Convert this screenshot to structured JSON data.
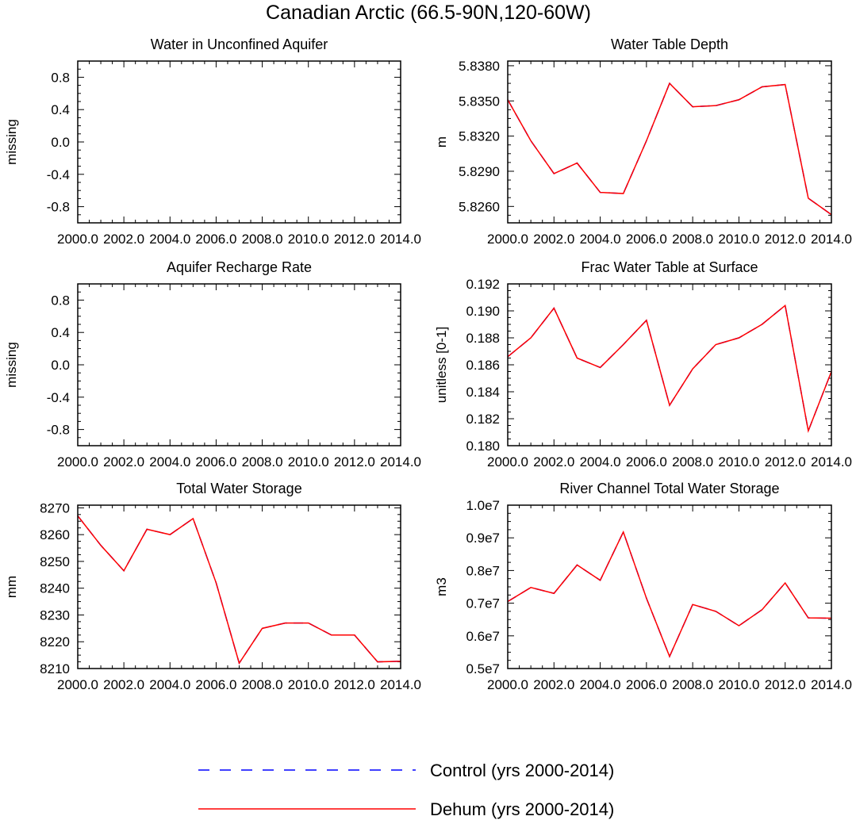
{
  "title": "Canadian Arctic (66.5-90N,120-60W)",
  "legend": [
    {
      "label": "Control (yrs 2000-2014)",
      "color": "#0000ff",
      "dash": "dashed"
    },
    {
      "label": "Dehum (yrs 2000-2014)",
      "color": "#ff0000",
      "dash": "solid"
    }
  ],
  "chart_data": [
    {
      "type": "line",
      "title": "Water in Unconfined Aquifer",
      "ylabel": "missing",
      "xlabel": "",
      "x": [
        2000,
        2001,
        2002,
        2003,
        2004,
        2005,
        2006,
        2007,
        2008,
        2009,
        2010,
        2011,
        2012,
        2013,
        2014
      ],
      "xlim": [
        2000,
        2014
      ],
      "ylim": [
        -1,
        1
      ],
      "xticks": [
        "2000.0",
        "2002.0",
        "2004.0",
        "2006.0",
        "2008.0",
        "2010.0",
        "2012.0",
        "2014.0"
      ],
      "yticks": [
        {
          "v": 0.8,
          "label": "0.8"
        },
        {
          "v": 0.4,
          "label": "0.4"
        },
        {
          "v": 0.0,
          "label": "0.0"
        },
        {
          "v": -0.4,
          "label": "-0.4"
        },
        {
          "v": -0.8,
          "label": "-0.8"
        }
      ],
      "series": []
    },
    {
      "type": "line",
      "title": "Water Table Depth",
      "ylabel": "m",
      "xlabel": "",
      "x": [
        2000,
        2001,
        2002,
        2003,
        2004,
        2005,
        2006,
        2007,
        2008,
        2009,
        2010,
        2011,
        2012,
        2013,
        2014
      ],
      "xlim": [
        2000,
        2014
      ],
      "ylim": [
        5.8246,
        5.8384
      ],
      "xticks": [
        "2000.0",
        "2002.0",
        "2004.0",
        "2006.0",
        "2008.0",
        "2010.0",
        "2012.0",
        "2014.0"
      ],
      "yticks": [
        {
          "v": 5.838,
          "label": "5.8380"
        },
        {
          "v": 5.835,
          "label": "5.8350"
        },
        {
          "v": 5.832,
          "label": "5.8320"
        },
        {
          "v": 5.829,
          "label": "5.8290"
        },
        {
          "v": 5.826,
          "label": "5.8260"
        }
      ],
      "series": [
        {
          "values": [
            5.8351,
            5.8316,
            5.8288,
            5.8297,
            5.8272,
            5.8271,
            5.8316,
            5.8365,
            5.8345,
            5.8346,
            5.8351,
            5.8362,
            5.8364,
            5.8267,
            5.8253
          ]
        },
        {
          "values": [
            5.8351,
            5.8316,
            5.8288,
            5.8297,
            5.8272,
            5.8271,
            5.8316,
            5.8365,
            5.8345,
            5.8346,
            5.8351,
            5.8362,
            5.8364,
            5.8267,
            5.8253
          ]
        }
      ]
    },
    {
      "type": "line",
      "title": "Aquifer Recharge Rate",
      "ylabel": "missing",
      "xlabel": "",
      "x": [
        2000,
        2001,
        2002,
        2003,
        2004,
        2005,
        2006,
        2007,
        2008,
        2009,
        2010,
        2011,
        2012,
        2013,
        2014
      ],
      "xlim": [
        2000,
        2014
      ],
      "ylim": [
        -1,
        1
      ],
      "xticks": [
        "2000.0",
        "2002.0",
        "2004.0",
        "2006.0",
        "2008.0",
        "2010.0",
        "2012.0",
        "2014.0"
      ],
      "yticks": [
        {
          "v": 0.8,
          "label": "0.8"
        },
        {
          "v": 0.4,
          "label": "0.4"
        },
        {
          "v": 0.0,
          "label": "0.0"
        },
        {
          "v": -0.4,
          "label": "-0.4"
        },
        {
          "v": -0.8,
          "label": "-0.8"
        }
      ],
      "series": []
    },
    {
      "type": "line",
      "title": "Frac Water Table at Surface",
      "ylabel": "unitless [0-1]",
      "xlabel": "",
      "x": [
        2000,
        2001,
        2002,
        2003,
        2004,
        2005,
        2006,
        2007,
        2008,
        2009,
        2010,
        2011,
        2012,
        2013,
        2014
      ],
      "xlim": [
        2000,
        2014
      ],
      "ylim": [
        0.18,
        0.192
      ],
      "xticks": [
        "2000.0",
        "2002.0",
        "2004.0",
        "2006.0",
        "2008.0",
        "2010.0",
        "2012.0",
        "2014.0"
      ],
      "yticks": [
        {
          "v": 0.192,
          "label": "0.192"
        },
        {
          "v": 0.19,
          "label": "0.190"
        },
        {
          "v": 0.188,
          "label": "0.188"
        },
        {
          "v": 0.186,
          "label": "0.186"
        },
        {
          "v": 0.184,
          "label": "0.184"
        },
        {
          "v": 0.182,
          "label": "0.182"
        },
        {
          "v": 0.18,
          "label": "0.180"
        }
      ],
      "series": [
        {
          "values": [
            0.1866,
            0.188,
            0.1902,
            0.1865,
            0.1858,
            0.1875,
            0.1893,
            0.183,
            0.1857,
            0.1875,
            0.188,
            0.189,
            0.1904,
            0.1811,
            0.1855
          ]
        },
        {
          "values": [
            0.1866,
            0.188,
            0.1902,
            0.1865,
            0.1858,
            0.1875,
            0.1893,
            0.183,
            0.1857,
            0.1875,
            0.188,
            0.189,
            0.1904,
            0.1811,
            0.1855
          ]
        }
      ]
    },
    {
      "type": "line",
      "title": "Total Water Storage",
      "ylabel": "mm",
      "xlabel": "",
      "x": [
        2000,
        2001,
        2002,
        2003,
        2004,
        2005,
        2006,
        2007,
        2008,
        2009,
        2010,
        2011,
        2012,
        2013,
        2014
      ],
      "xlim": [
        2000,
        2014
      ],
      "ylim": [
        8210,
        8271
      ],
      "xticks": [
        "2000.0",
        "2002.0",
        "2004.0",
        "2006.0",
        "2008.0",
        "2010.0",
        "2012.0",
        "2014.0"
      ],
      "yticks": [
        {
          "v": 8270,
          "label": "8270"
        },
        {
          "v": 8260,
          "label": "8260"
        },
        {
          "v": 8250,
          "label": "8250"
        },
        {
          "v": 8240,
          "label": "8240"
        },
        {
          "v": 8230,
          "label": "8230"
        },
        {
          "v": 8220,
          "label": "8220"
        },
        {
          "v": 8210,
          "label": "8210"
        }
      ],
      "series": [
        {
          "values": [
            8267,
            8256,
            8246.5,
            8262,
            8260,
            8266,
            8242,
            8212,
            8225,
            8227,
            8227,
            8222.5,
            8222.5,
            8212.5,
            8212.7
          ]
        },
        {
          "values": [
            8267,
            8256,
            8246.5,
            8262,
            8260,
            8266,
            8242,
            8212,
            8225,
            8227,
            8227,
            8222.5,
            8222.5,
            8212.5,
            8212.7
          ]
        }
      ]
    },
    {
      "type": "line",
      "title": "River Channel Total Water Storage",
      "ylabel": "m3",
      "xlabel": "",
      "x": [
        2000,
        2001,
        2002,
        2003,
        2004,
        2005,
        2006,
        2007,
        2008,
        2009,
        2010,
        2011,
        2012,
        2013,
        2014
      ],
      "xlim": [
        2000,
        2014
      ],
      "ylim": [
        5000000,
        10000000
      ],
      "xticks": [
        "2000.0",
        "2002.0",
        "2004.0",
        "2006.0",
        "2008.0",
        "2010.0",
        "2012.0",
        "2014.0"
      ],
      "yticks": [
        {
          "v": 10000000,
          "label": "1.0e7"
        },
        {
          "v": 9000000,
          "label": "0.9e7"
        },
        {
          "v": 8000000,
          "label": "0.8e7"
        },
        {
          "v": 7000000,
          "label": "0.7e7"
        },
        {
          "v": 6000000,
          "label": "0.6e7"
        },
        {
          "v": 5000000,
          "label": "0.5e7"
        }
      ],
      "series": [
        {
          "values": [
            7050000,
            7480000,
            7300000,
            8170000,
            7700000,
            9180000,
            7150000,
            5370000,
            6960000,
            6750000,
            6310000,
            6800000,
            7620000,
            6550000,
            6540000
          ]
        },
        {
          "values": [
            7050000,
            7480000,
            7300000,
            8170000,
            7700000,
            9180000,
            7150000,
            5370000,
            6960000,
            6750000,
            6310000,
            6800000,
            7620000,
            6550000,
            6540000
          ]
        }
      ]
    }
  ]
}
